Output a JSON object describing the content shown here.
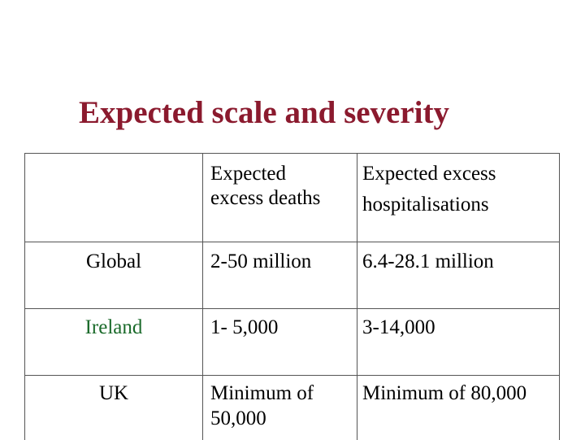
{
  "slide": {
    "title": "Expected scale and severity"
  },
  "table": {
    "headers": [
      "",
      "Expected excess deaths",
      "Expected excess hospitalisations"
    ],
    "header_lines": {
      "col2": [
        "Expected",
        "excess deaths"
      ],
      "col3": [
        "Expected excess",
        "hospitalisations"
      ]
    },
    "rows": [
      {
        "region": "Global",
        "deaths": "2-50 million",
        "hospitalisations": "6.4-28.1 million"
      },
      {
        "region": "Ireland",
        "deaths": "1- 5,000",
        "hospitalisations": "3-14,000"
      },
      {
        "region": "UK",
        "deaths_lines": [
          "Minimum of",
          "50,000"
        ],
        "deaths": "Minimum of 50,000",
        "hospitalisations": "Minimum of 80,000"
      }
    ]
  },
  "colors": {
    "title": "#8b1a2e",
    "ireland_label": "#1a6a2a",
    "border": "#555555"
  }
}
